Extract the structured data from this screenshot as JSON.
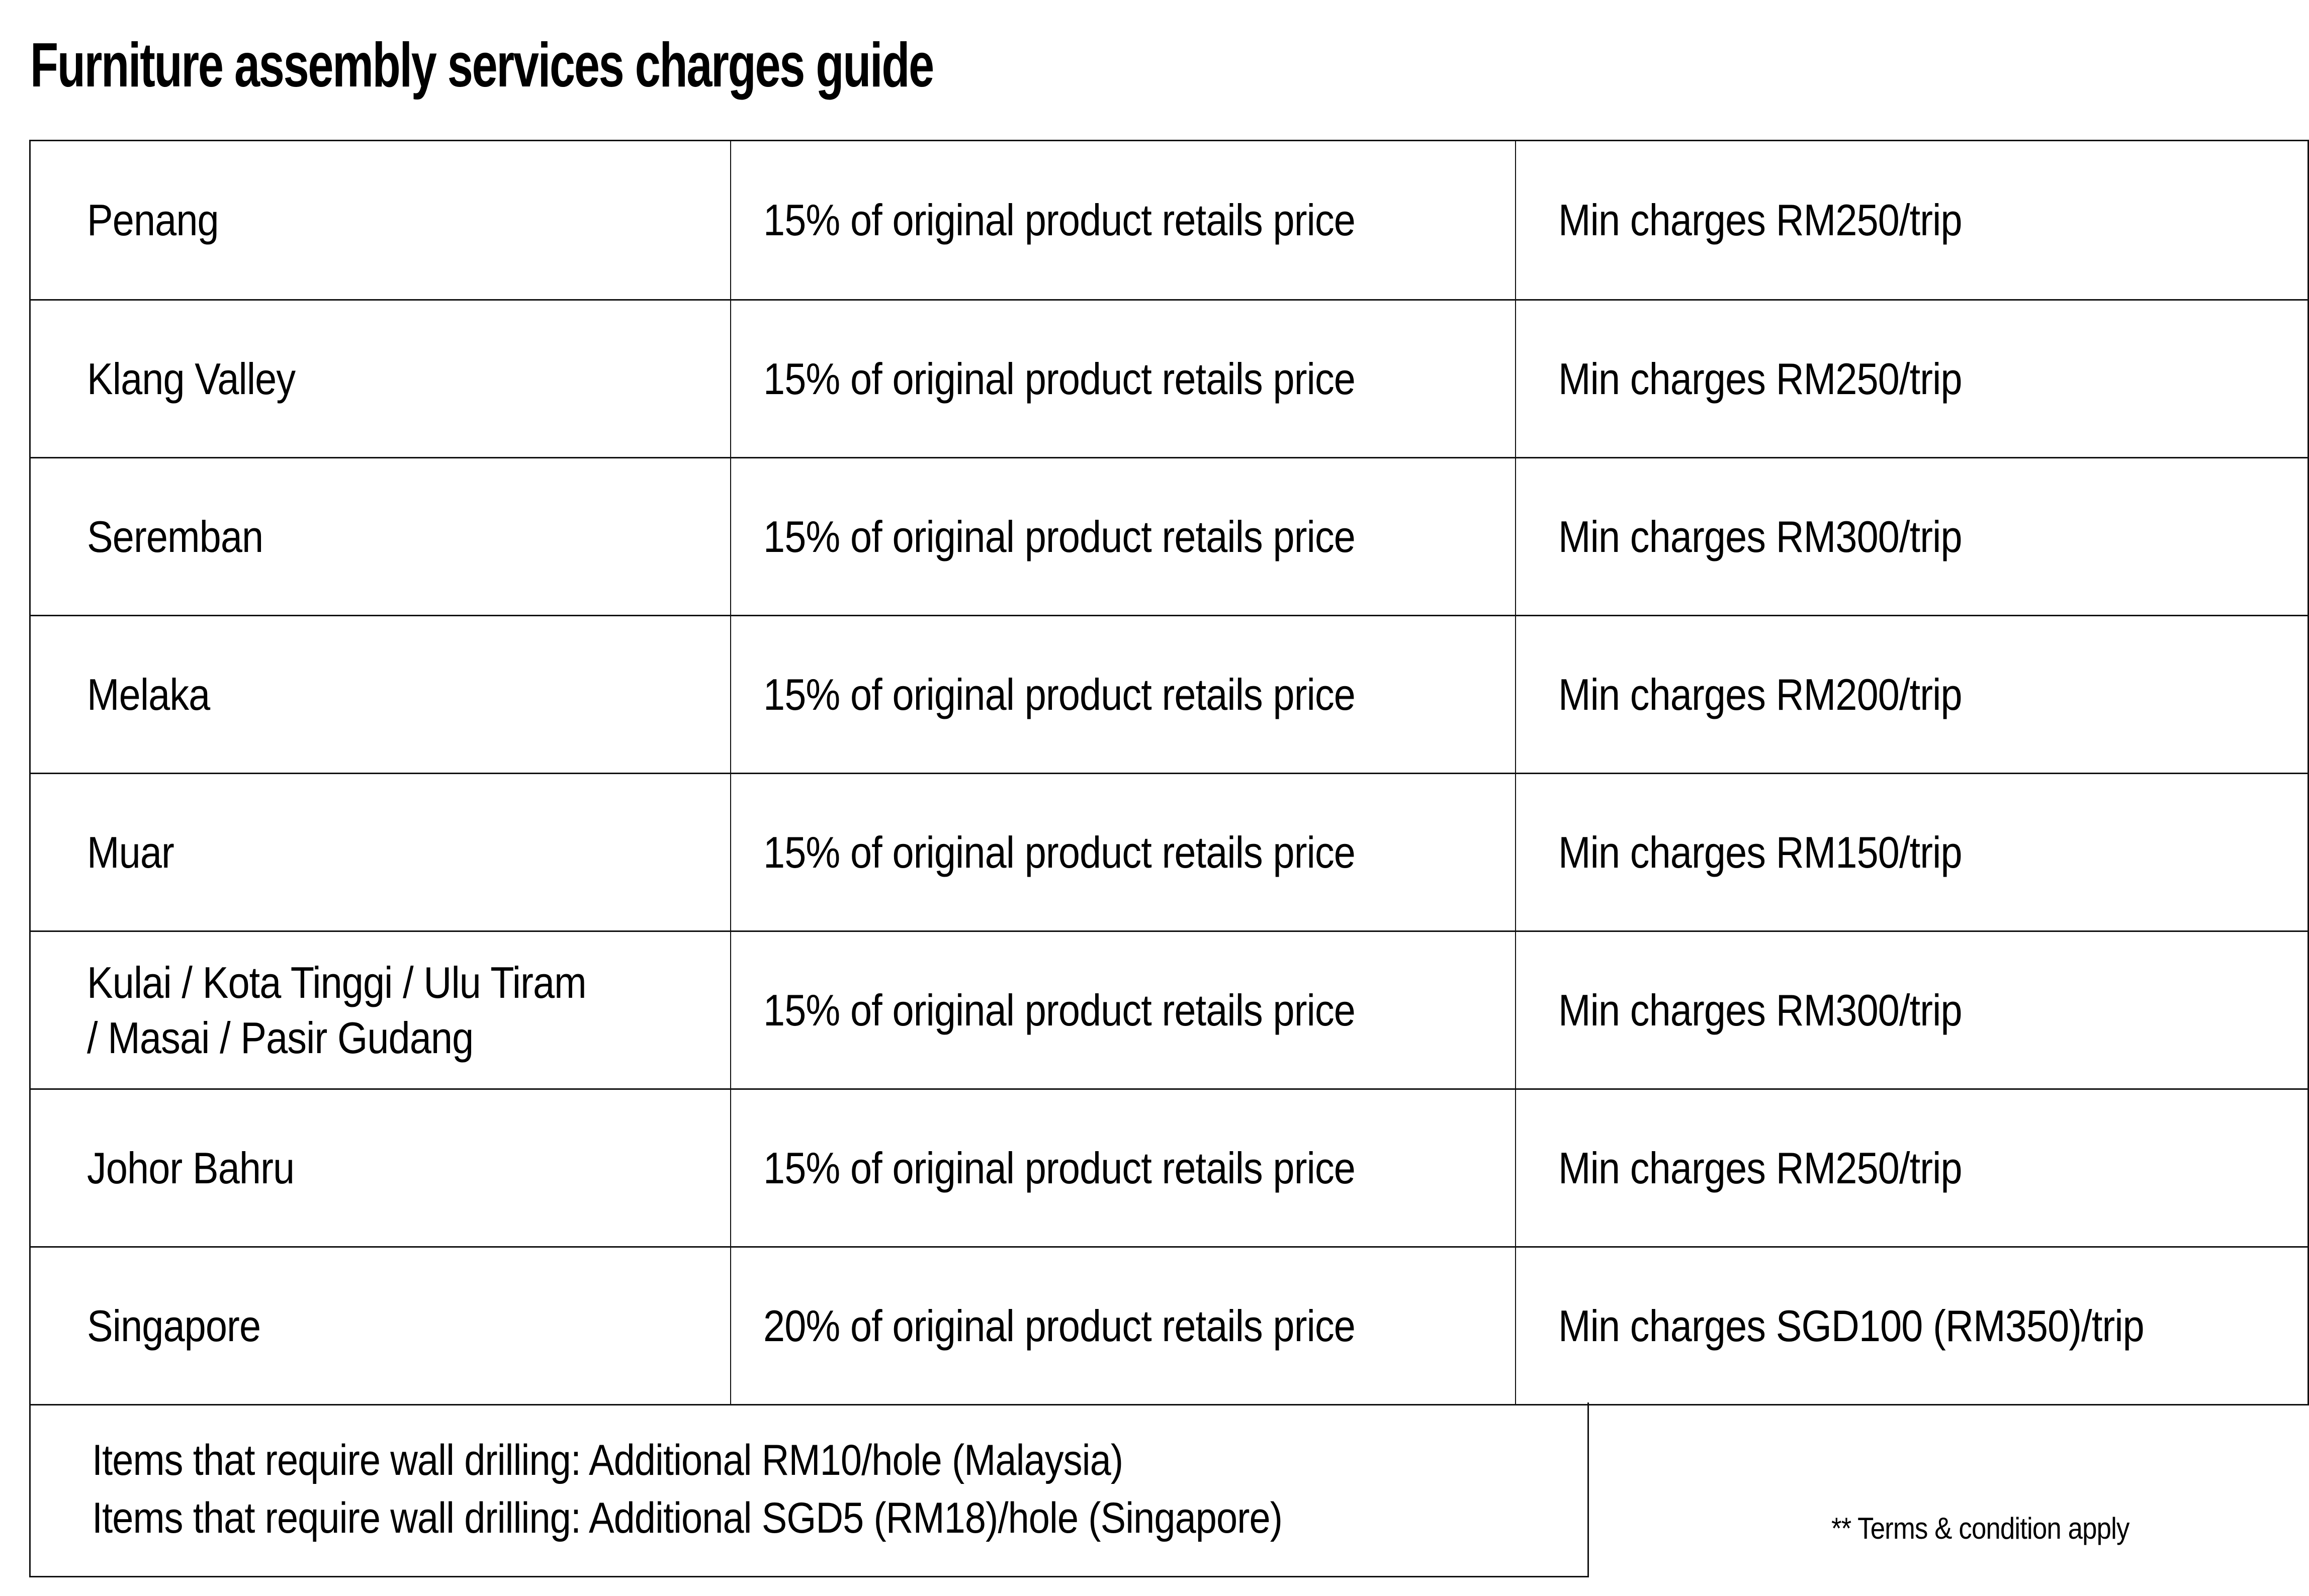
{
  "page": {
    "title": "Furniture assembly services charges guide",
    "terms_note": "** Terms & condition apply"
  },
  "colors": {
    "background": "#ffffff",
    "text": "#000000",
    "border": "#111111"
  },
  "table": {
    "rows": [
      {
        "region": "Penang",
        "rate": "15% of original product retails price",
        "min_charge": "Min charges RM250/trip"
      },
      {
        "region": "Klang Valley",
        "rate": "15% of original product retails price",
        "min_charge": "Min charges RM250/trip"
      },
      {
        "region": "Seremban",
        "rate": "15% of original product retails price",
        "min_charge": "Min charges RM300/trip"
      },
      {
        "region": "Melaka",
        "rate": "15% of original product retails price",
        "min_charge": "Min charges RM200/trip"
      },
      {
        "region": "Muar",
        "rate": "15% of original product retails price",
        "min_charge": "Min charges RM150/trip"
      },
      {
        "region": "Kulai / Kota Tinggi / Ulu Tiram\n/ Masai / Pasir Gudang",
        "rate": "15% of original product retails price",
        "min_charge": "Min charges RM300/trip"
      },
      {
        "region": "Johor Bahru",
        "rate": "15% of original product retails price",
        "min_charge": "Min charges RM250/trip"
      },
      {
        "region": "Singapore",
        "rate": "20% of original product retails price",
        "min_charge": "Min charges SGD100 (RM350)/trip"
      }
    ],
    "footnote_lines": [
      "Items that require wall drilling: Additional RM10/hole (Malaysia)",
      "Items that require wall drilling: Additional SGD5 (RM18)/hole (Singapore)"
    ]
  }
}
